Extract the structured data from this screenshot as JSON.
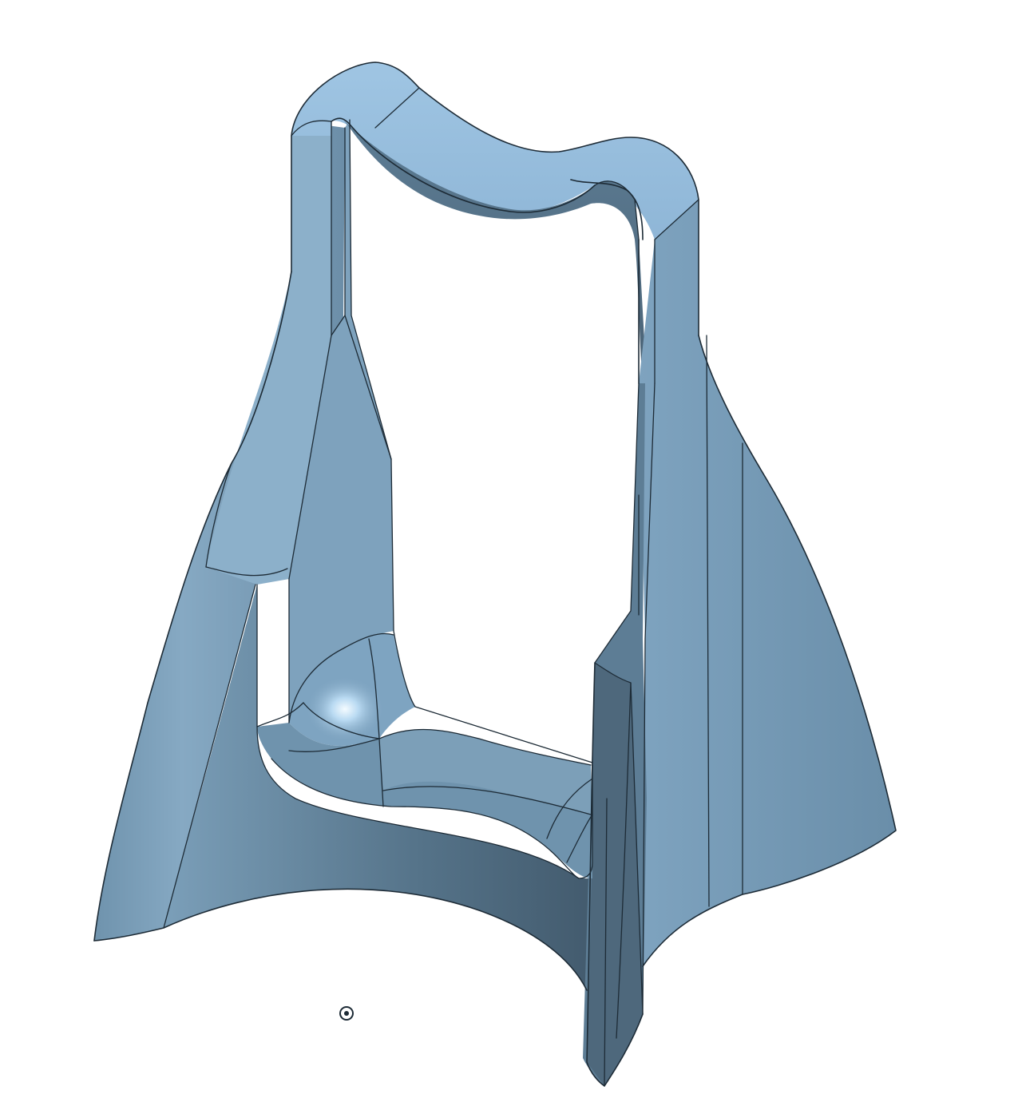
{
  "viewport": {
    "background": "#ffffff",
    "part_color": "#7fa3bd",
    "part_highlight": "#a8cbe4",
    "part_shadow": "#4c6478",
    "edge_color": "#1d2b36"
  },
  "origin_marker": {
    "icon": "origin-icon"
  }
}
